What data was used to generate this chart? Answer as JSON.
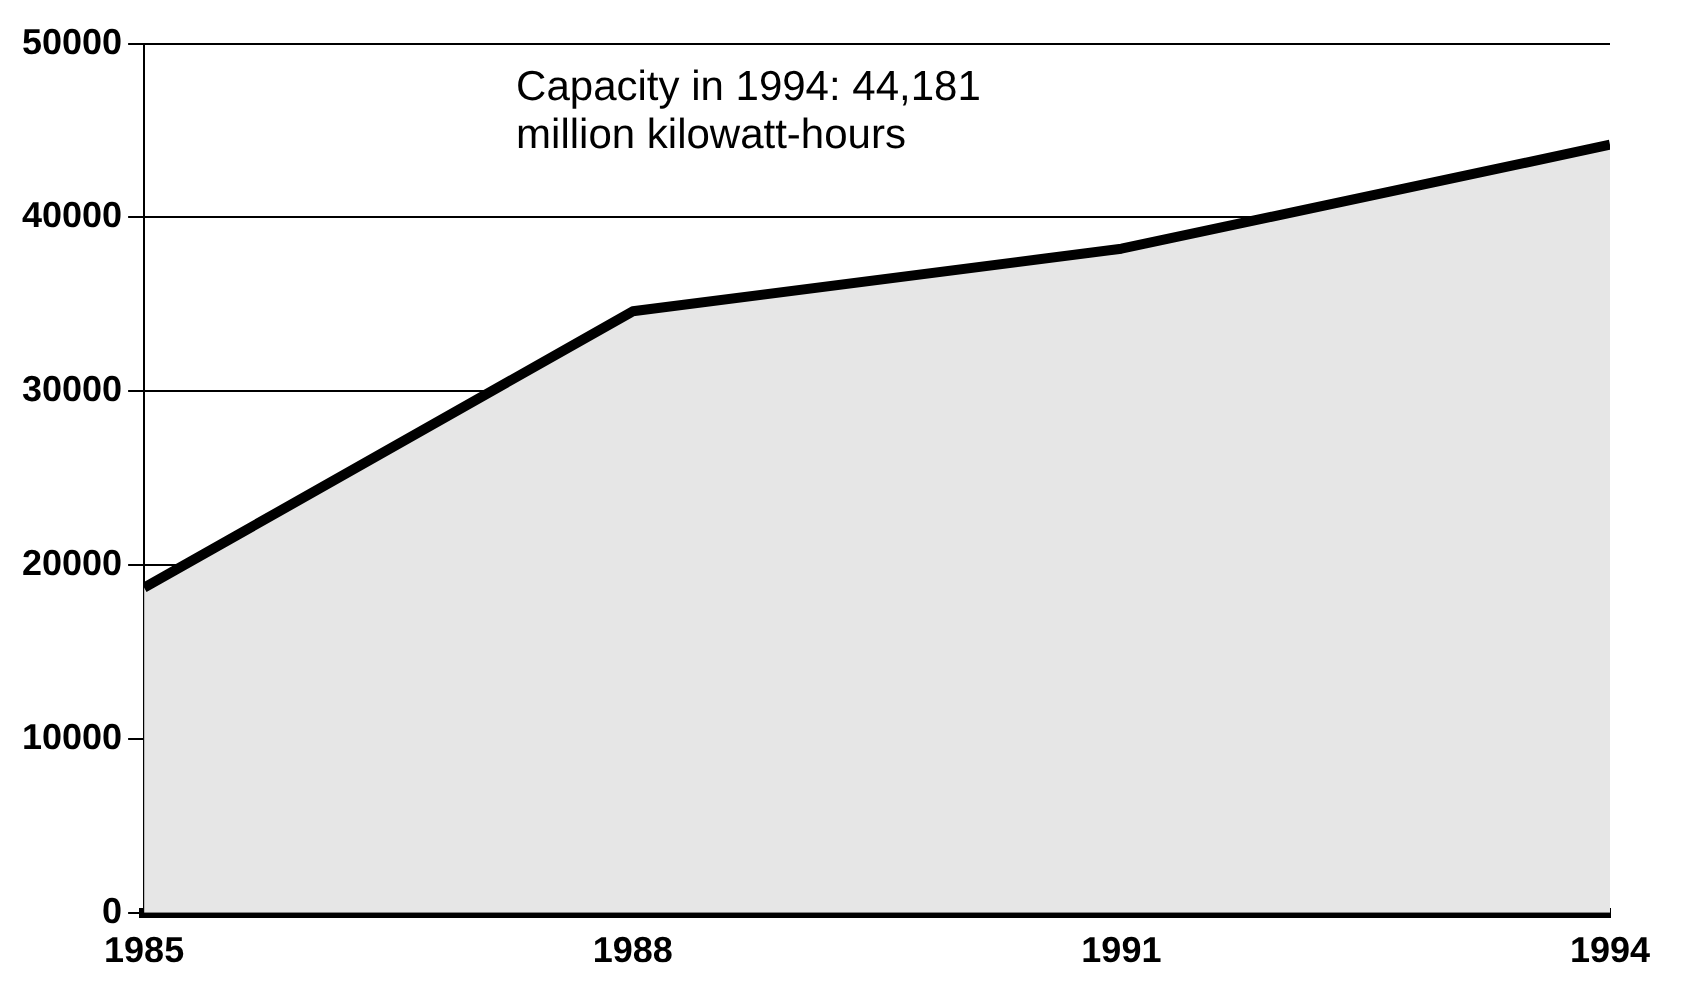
{
  "chart_data": {
    "type": "area",
    "x": [
      1985,
      1988,
      1991,
      1994
    ],
    "series": [
      {
        "color": "#000000",
        "values": [
          18700,
          34600,
          38200,
          44181
        ]
      }
    ],
    "xlim": [
      1985,
      1994
    ],
    "xticks": [
      1985,
      1988,
      1991,
      1994
    ],
    "ylim": [
      0,
      50000
    ],
    "yticks": [
      0,
      10000,
      20000,
      30000,
      40000,
      50000
    ],
    "grid": "y",
    "legend": false,
    "annotations": [
      "Capacity in 1994: 44,181\nmillion kilowatt-hours"
    ]
  }
}
